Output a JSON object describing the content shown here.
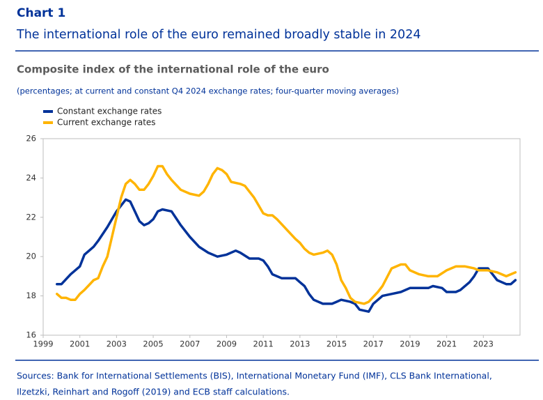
{
  "chart_data": {
    "type": "line",
    "label": "Chart 1",
    "headline": "The international role of the euro remained broadly stable in 2024",
    "title": "Composite index of the international role of the euro",
    "subtitle": "(percentages; at current and constant Q4 2024 exchange rates; four-quarter moving averages)",
    "sources": [
      "Sources: Bank for International Settlements (BIS), International Monetary Fund (IMF), CLS Bank International,",
      "Ilzetzki, Reinhart and Rogoff (2019) and ECB staff calculations."
    ],
    "legend": "top-left",
    "grid": false,
    "xlim": [
      1999,
      2025
    ],
    "xticks": [
      1999,
      2001,
      2003,
      2005,
      2007,
      2009,
      2011,
      2013,
      2015,
      2017,
      2019,
      2021,
      2023
    ],
    "ylim": [
      16,
      26
    ],
    "yticks": [
      16,
      18,
      20,
      22,
      24,
      26
    ],
    "series": [
      {
        "name": "Constant exchange rates",
        "color": "#003299",
        "x": [
          1999.75,
          2000.0,
          2000.5,
          2001.0,
          2001.25,
          2001.75,
          2002.0,
          2002.5,
          2003.0,
          2003.5,
          2003.75,
          2004.0,
          2004.25,
          2004.5,
          2004.75,
          2005.0,
          2005.25,
          2005.5,
          2006.0,
          2006.5,
          2007.0,
          2007.5,
          2008.0,
          2008.5,
          2009.0,
          2009.5,
          2009.75,
          2010.25,
          2010.75,
          2011.0,
          2011.25,
          2011.5,
          2012.0,
          2012.5,
          2012.75,
          2013.0,
          2013.25,
          2013.5,
          2013.75,
          2014.25,
          2014.75,
          2015.0,
          2015.25,
          2015.75,
          2016.0,
          2016.25,
          2016.75,
          2017.0,
          2017.5,
          2018.0,
          2018.5,
          2019.0,
          2019.5,
          2020.0,
          2020.25,
          2020.75,
          2021.0,
          2021.5,
          2021.75,
          2022.25,
          2022.5,
          2022.75,
          2023.25,
          2023.5,
          2023.75,
          2024.25,
          2024.5,
          2024.75
        ],
        "values": [
          18.6,
          18.6,
          19.1,
          19.5,
          20.1,
          20.5,
          20.8,
          21.5,
          22.3,
          22.9,
          22.8,
          22.3,
          21.8,
          21.6,
          21.7,
          21.9,
          22.3,
          22.4,
          22.3,
          21.6,
          21.0,
          20.5,
          20.2,
          20.0,
          20.1,
          20.3,
          20.2,
          19.9,
          19.9,
          19.8,
          19.5,
          19.1,
          18.9,
          18.9,
          18.9,
          18.7,
          18.5,
          18.1,
          17.8,
          17.6,
          17.6,
          17.7,
          17.8,
          17.7,
          17.6,
          17.3,
          17.2,
          17.6,
          18.0,
          18.1,
          18.2,
          18.4,
          18.4,
          18.4,
          18.5,
          18.4,
          18.2,
          18.2,
          18.3,
          18.7,
          19.0,
          19.4,
          19.4,
          19.1,
          18.8,
          18.6,
          18.6,
          18.8
        ]
      },
      {
        "name": "Current exchange rates",
        "color": "#ffb400",
        "x": [
          1999.75,
          2000.0,
          2000.25,
          2000.5,
          2000.75,
          2001.0,
          2001.25,
          2001.75,
          2002.0,
          2002.25,
          2002.5,
          2002.75,
          2003.0,
          2003.25,
          2003.5,
          2003.75,
          2004.0,
          2004.25,
          2004.5,
          2004.75,
          2005.0,
          2005.25,
          2005.5,
          2005.75,
          2006.0,
          2006.5,
          2007.0,
          2007.5,
          2007.75,
          2008.0,
          2008.25,
          2008.5,
          2008.75,
          2009.0,
          2009.25,
          2009.75,
          2010.0,
          2010.5,
          2010.75,
          2011.0,
          2011.25,
          2011.5,
          2011.75,
          2012.25,
          2012.75,
          2013.0,
          2013.25,
          2013.5,
          2013.75,
          2014.25,
          2014.5,
          2014.75,
          2015.0,
          2015.25,
          2015.5,
          2015.75,
          2016.0,
          2016.5,
          2016.75,
          2017.25,
          2017.5,
          2018.0,
          2018.5,
          2018.75,
          2019.0,
          2019.5,
          2020.0,
          2020.25,
          2020.5,
          2021.0,
          2021.5,
          2022.0,
          2022.5,
          2022.75,
          2023.25,
          2023.75,
          2024.0,
          2024.25,
          2024.5,
          2024.75
        ],
        "values": [
          18.1,
          17.9,
          17.9,
          17.8,
          17.8,
          18.1,
          18.3,
          18.8,
          18.9,
          19.5,
          20.0,
          21.0,
          22.0,
          23.0,
          23.7,
          23.9,
          23.7,
          23.4,
          23.4,
          23.7,
          24.1,
          24.6,
          24.6,
          24.2,
          23.9,
          23.4,
          23.2,
          23.1,
          23.3,
          23.7,
          24.2,
          24.5,
          24.4,
          24.2,
          23.8,
          23.7,
          23.6,
          23.0,
          22.6,
          22.2,
          22.1,
          22.1,
          21.9,
          21.4,
          20.9,
          20.7,
          20.4,
          20.2,
          20.1,
          20.2,
          20.3,
          20.1,
          19.6,
          18.8,
          18.4,
          17.9,
          17.7,
          17.6,
          17.7,
          18.2,
          18.5,
          19.4,
          19.6,
          19.6,
          19.3,
          19.1,
          19.0,
          19.0,
          19.0,
          19.3,
          19.5,
          19.5,
          19.4,
          19.3,
          19.3,
          19.2,
          19.1,
          19.0,
          19.1,
          19.2
        ]
      }
    ]
  }
}
